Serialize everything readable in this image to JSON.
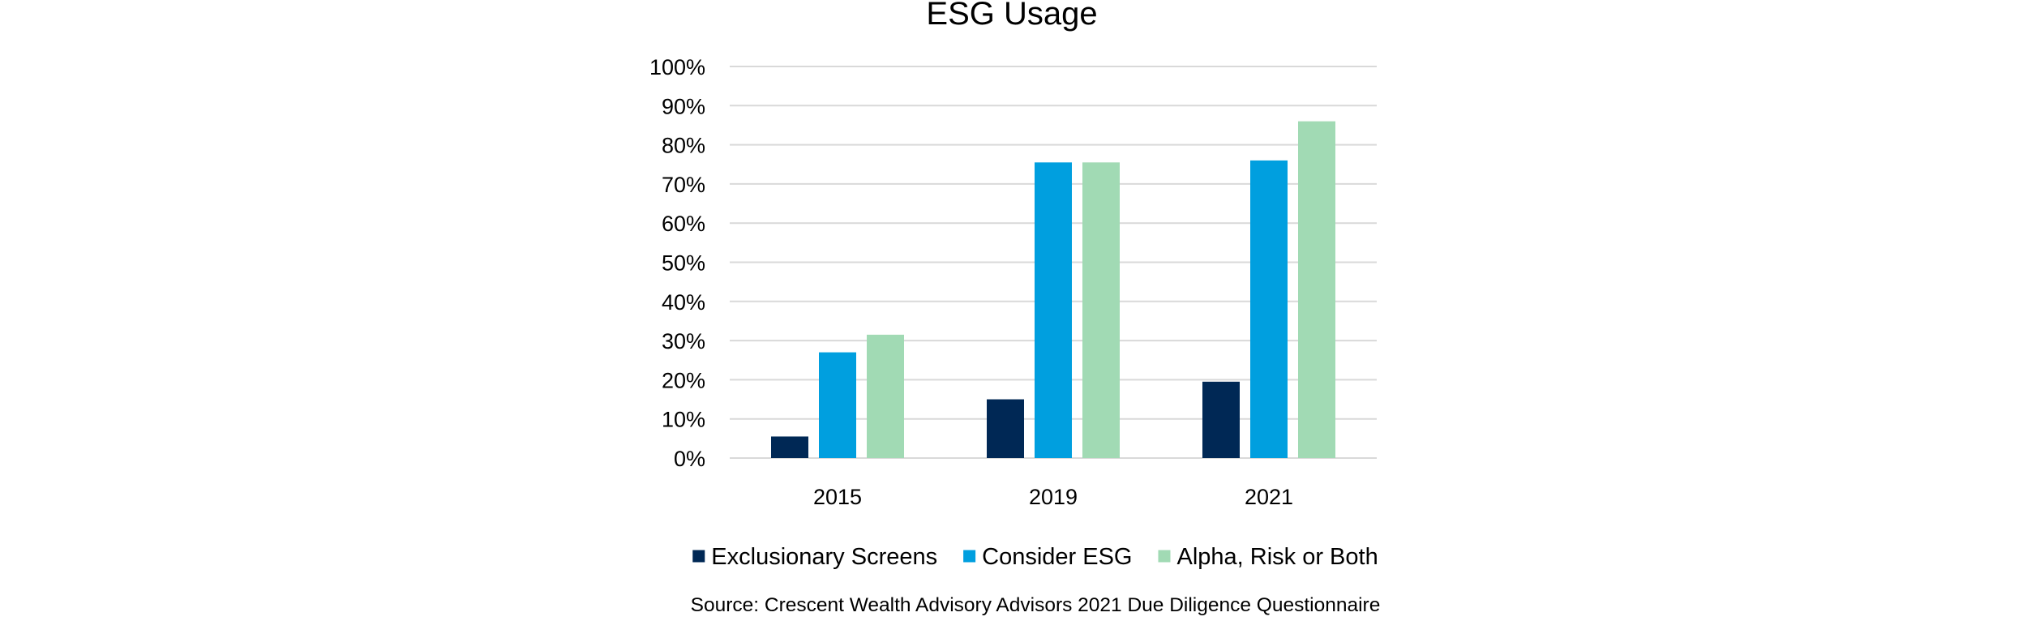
{
  "chart_data": {
    "type": "bar",
    "title": "ESG Usage",
    "xlabel": "",
    "ylabel": "",
    "categories": [
      "2015",
      "2019",
      "2021"
    ],
    "series": [
      {
        "name": "Exclusionary Screens",
        "color": "#002855",
        "values": [
          5.5,
          15,
          19.5
        ]
      },
      {
        "name": "Consider ESG",
        "color": "#009FDF",
        "values": [
          27,
          75.5,
          76
        ]
      },
      {
        "name": "Alpha, Risk or Both",
        "color": "#A1DAB4",
        "values": [
          31.5,
          75.5,
          86
        ]
      }
    ],
    "ylim": [
      0,
      100
    ],
    "yticks": [
      "0%",
      "10%",
      "20%",
      "30%",
      "40%",
      "50%",
      "60%",
      "70%",
      "80%",
      "90%",
      "100%"
    ],
    "grid": true,
    "legend_position": "bottom",
    "gridline_color": "#D9D9D9",
    "source": "Source: Crescent Wealth Advisory Advisors 2021 Due Diligence Questionnaire"
  }
}
